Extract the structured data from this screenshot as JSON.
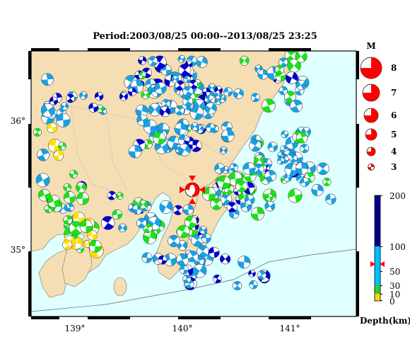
{
  "title": "Period:2003/08/25 00:00--2013/08/25 23:25",
  "map": {
    "lon_ticks": [
      "139°",
      "140°",
      "141°"
    ],
    "lat_ticks": [
      "36°",
      "35°"
    ],
    "colors": {
      "ocean": "#e0ffff",
      "land": "#f5deb3",
      "border": "#000000"
    }
  },
  "magnitude_legend": {
    "title": "M",
    "items": [
      "8",
      "7",
      "6",
      "5",
      "4",
      "3"
    ]
  },
  "depth_legend": {
    "label": "Depth(km)",
    "ticks": [
      "200",
      "100",
      "50",
      "30",
      "10",
      "0"
    ],
    "bands": [
      {
        "from_km": 100,
        "to_km": 200,
        "color": "#00008b"
      },
      {
        "from_km": 30,
        "to_km": 100,
        "color": "#00bfff"
      },
      {
        "from_km": 10,
        "to_km": 30,
        "color": "#32cd32"
      },
      {
        "from_km": 0,
        "to_km": 10,
        "color": "#ffd700"
      }
    ],
    "marker": "red-triangle-marker"
  },
  "highlight_event": {
    "lon": 140.1,
    "lat": 35.55,
    "color": "#ff0000"
  },
  "event_colors": {
    "deep": "#0000cc",
    "mid": "#1ca0e0",
    "shallow": "#1ee01e",
    "surface": "#ffe000",
    "rim": "#000000"
  }
}
